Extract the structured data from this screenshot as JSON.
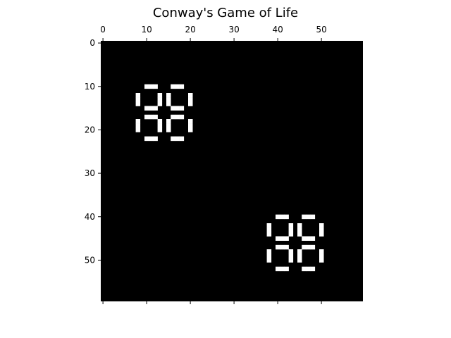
{
  "chart_data": {
    "type": "heatmap",
    "title": "Conway's Game of Life",
    "rows": 60,
    "cols": 60,
    "x_ticks": [
      0,
      10,
      20,
      30,
      40,
      50
    ],
    "y_ticks": [
      0,
      10,
      20,
      30,
      40,
      50
    ],
    "x_tick_position": "top",
    "colormap": [
      "#000000",
      "#ffffff"
    ],
    "grid": false,
    "patterns": [
      {
        "name": "pulsar",
        "center_col": 14,
        "center_row": 16
      },
      {
        "name": "pulsar",
        "center_col": 44,
        "center_row": 46
      }
    ]
  }
}
